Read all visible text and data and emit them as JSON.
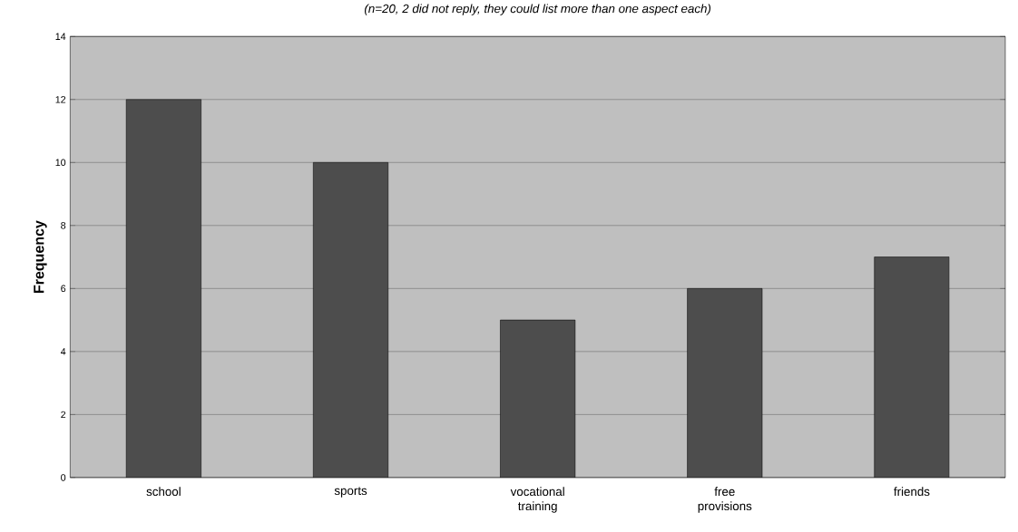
{
  "chart_data": {
    "type": "bar",
    "title": "(n=20, 2 did not reply, they could list more than one aspect each)",
    "ylabel": "Frequency",
    "categories": [
      "school",
      "sports",
      "vocational training",
      "free provisions",
      "friends"
    ],
    "values": [
      12,
      10,
      5,
      6,
      7
    ],
    "color": "#4d4d4d",
    "ylim": [
      0,
      14
    ],
    "yticks": [
      0,
      2,
      4,
      6,
      8,
      10,
      12,
      14
    ],
    "grid": "y"
  }
}
